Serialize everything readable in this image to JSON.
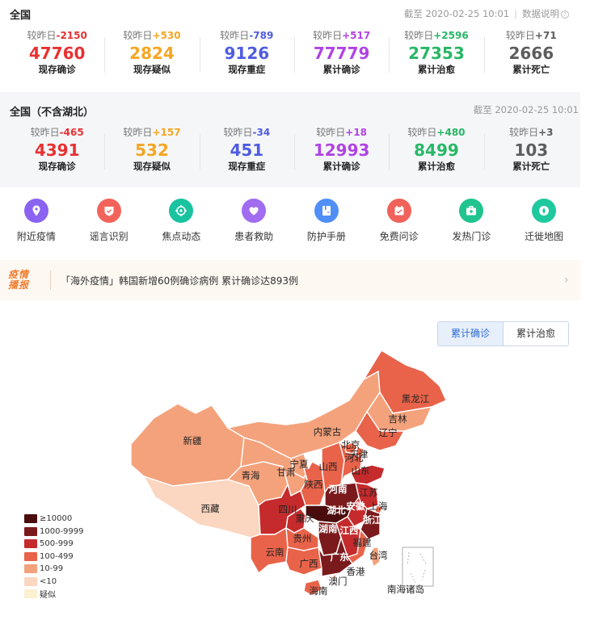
{
  "national": {
    "title": "全国",
    "updated": "截至 2020-02-25 10:01",
    "help": "数据说明",
    "help_icon": "?",
    "stats": [
      {
        "delta_label": "较昨日",
        "delta": "-2150",
        "value": "47760",
        "label": "现存确诊",
        "color": "#e83132"
      },
      {
        "delta_label": "较昨日",
        "delta": "+530",
        "value": "2824",
        "label": "现存疑似",
        "color": "#f5a623"
      },
      {
        "delta_label": "较昨日",
        "delta": "-789",
        "value": "9126",
        "label": "现存重症",
        "color": "#4f5ce1"
      },
      {
        "delta_label": "较昨日",
        "delta": "+517",
        "value": "77779",
        "label": "累计确诊",
        "color": "#b044e3"
      },
      {
        "delta_label": "较昨日",
        "delta": "+2596",
        "value": "27353",
        "label": "累计治愈",
        "color": "#28b766"
      },
      {
        "delta_label": "较昨日",
        "delta": "+71",
        "value": "2666",
        "label": "累计死亡",
        "color": "#5d5d5d"
      }
    ]
  },
  "excl_hubei": {
    "title": "全国（不含湖北）",
    "updated": "截至 2020-02-25 10:01",
    "stats": [
      {
        "delta_label": "较昨日",
        "delta": "-465",
        "value": "4391",
        "label": "现存确诊",
        "color": "#e83132"
      },
      {
        "delta_label": "较昨日",
        "delta": "+157",
        "value": "532",
        "label": "现存疑似",
        "color": "#f5a623"
      },
      {
        "delta_label": "较昨日",
        "delta": "-34",
        "value": "451",
        "label": "现存重症",
        "color": "#4f5ce1"
      },
      {
        "delta_label": "较昨日",
        "delta": "+18",
        "value": "12993",
        "label": "累计确诊",
        "color": "#b044e3"
      },
      {
        "delta_label": "较昨日",
        "delta": "+480",
        "value": "8499",
        "label": "累计治愈",
        "color": "#28b766"
      },
      {
        "delta_label": "较昨日",
        "delta": "+3",
        "value": "103",
        "label": "累计死亡",
        "color": "#5d5d5d"
      }
    ]
  },
  "tools": [
    {
      "label": "附近疫情",
      "icon": "location-pin-icon",
      "color": "#8a63f0"
    },
    {
      "label": "谣言识别",
      "icon": "shield-check-icon",
      "color": "#f2645b"
    },
    {
      "label": "焦点动态",
      "icon": "crosshair-icon",
      "color": "#19c3a0"
    },
    {
      "label": "患者救助",
      "icon": "heart-icon",
      "color": "#a16cf0"
    },
    {
      "label": "防护手册",
      "icon": "book-icon",
      "color": "#4f8ff7"
    },
    {
      "label": "免费问诊",
      "icon": "calendar-icon",
      "color": "#f0625a"
    },
    {
      "label": "发热门诊",
      "icon": "medical-kit-icon",
      "color": "#21c38f"
    },
    {
      "label": "迁徙地图",
      "icon": "compass-icon",
      "color": "#1fc99e"
    }
  ],
  "news": {
    "badge_line1": "疫情",
    "badge_line2": "播报",
    "text": "「海外疫情」韩国新增60例确诊病例 累计确诊达893例",
    "arrow": "›"
  },
  "map_tabs": [
    {
      "label": "累计确诊",
      "active": true
    },
    {
      "label": "累计治愈",
      "active": false
    }
  ],
  "legend": [
    {
      "label": "≥10000",
      "color": "#4a0c0c"
    },
    {
      "label": "1000-9999",
      "color": "#7b1a1c"
    },
    {
      "label": "500-999",
      "color": "#c52b2c"
    },
    {
      "label": "100-499",
      "color": "#e8634a"
    },
    {
      "label": "10-99",
      "color": "#f4a27c"
    },
    {
      "label": "<10",
      "color": "#fbd6c0"
    },
    {
      "label": "疑似",
      "color": "#fbf0d0"
    }
  ],
  "provinces": [
    {
      "name": "黑龙江",
      "level": "100-499"
    },
    {
      "name": "吉林",
      "level": "10-99"
    },
    {
      "name": "辽宁",
      "level": "100-499"
    },
    {
      "name": "内蒙古",
      "level": "10-99"
    },
    {
      "name": "北京",
      "level": "100-499"
    },
    {
      "name": "天津",
      "level": "100-499"
    },
    {
      "name": "河北",
      "level": "100-499"
    },
    {
      "name": "新疆",
      "level": "10-99"
    },
    {
      "name": "宁夏",
      "level": "10-99"
    },
    {
      "name": "山西",
      "level": "100-499"
    },
    {
      "name": "山东",
      "level": "500-999"
    },
    {
      "name": "青海",
      "level": "10-99"
    },
    {
      "name": "甘肃",
      "level": "10-99"
    },
    {
      "name": "陕西",
      "level": "100-499"
    },
    {
      "name": "河南",
      "level": "1000-9999"
    },
    {
      "name": "江苏",
      "level": "500-999"
    },
    {
      "name": "西藏",
      "level": "<10"
    },
    {
      "name": "四川",
      "level": "500-999"
    },
    {
      "name": "重庆",
      "level": "500-999"
    },
    {
      "name": "湖北",
      "level": "≥10000"
    },
    {
      "name": "安徽",
      "level": "500-999"
    },
    {
      "name": "上海",
      "level": "100-499"
    },
    {
      "name": "浙江",
      "level": "1000-9999"
    },
    {
      "name": "湖南",
      "level": "1000-9999"
    },
    {
      "name": "江西",
      "level": "500-999"
    },
    {
      "name": "贵州",
      "level": "100-499"
    },
    {
      "name": "福建",
      "level": "100-499"
    },
    {
      "name": "云南",
      "level": "100-499"
    },
    {
      "name": "广西",
      "level": "100-499"
    },
    {
      "name": "广东",
      "level": "1000-9999"
    },
    {
      "name": "台湾",
      "level": "10-99"
    },
    {
      "name": "香港",
      "level": "10-99"
    },
    {
      "name": "澳门",
      "level": "<10"
    },
    {
      "name": "海南",
      "level": "100-499"
    },
    {
      "name": "南海诸岛",
      "level": ""
    }
  ]
}
